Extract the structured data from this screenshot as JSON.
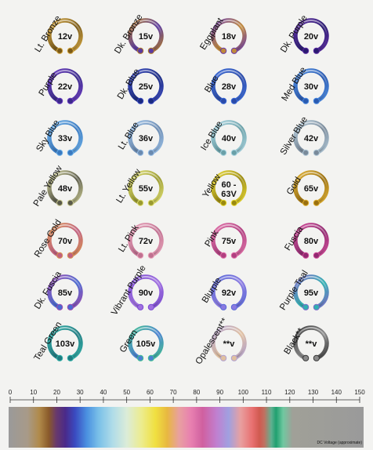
{
  "chart_data": {
    "type": "table",
    "title": "",
    "xlabel": "DC Voltage (approximate)",
    "x_ticks": [
      0,
      10,
      20,
      30,
      40,
      50,
      60,
      70,
      80,
      90,
      100,
      110,
      120,
      130,
      140,
      150
    ],
    "xlim": [
      0,
      150
    ],
    "rings": [
      {
        "name": "Lt. Bronze",
        "voltage": "12v",
        "color": "#d4a640",
        "color2": "#7a5a18"
      },
      {
        "name": "Dk. Bronze",
        "voltage": "15v",
        "color": "#b07a2a",
        "color2": "#5a3aa0"
      },
      {
        "name": "Eggplant",
        "voltage": "18v",
        "color": "#6a3aa8",
        "color2": "#c08a3a"
      },
      {
        "name": "Dk. Purple",
        "voltage": "20v",
        "color": "#5a2aa0",
        "color2": "#2a1a70"
      },
      {
        "name": "Purple",
        "voltage": "22v",
        "color": "#6a3ac0",
        "color2": "#3a2a8a"
      },
      {
        "name": "Dk. Blue",
        "voltage": "25v",
        "color": "#3a4ac0",
        "color2": "#1a2a80"
      },
      {
        "name": "Blue",
        "voltage": "28v",
        "color": "#3a6ad8",
        "color2": "#2a4aa8"
      },
      {
        "name": "Med Blue",
        "voltage": "30v",
        "color": "#4a8ae0",
        "color2": "#2a5ab0"
      },
      {
        "name": "Sky Blue",
        "voltage": "33v",
        "color": "#6aaee8",
        "color2": "#3a7ac0"
      },
      {
        "name": "Lt. Blue",
        "voltage": "36v",
        "color": "#9ac0e8",
        "color2": "#6a8ab0"
      },
      {
        "name": "Ice Blue",
        "voltage": "40v",
        "color": "#a8d4e0",
        "color2": "#6aa0a8"
      },
      {
        "name": "Silver Blue",
        "voltage": "42v",
        "color": "#b0c8d8",
        "color2": "#7a8a9a"
      },
      {
        "name": "Pale Yellow",
        "voltage": "48v",
        "color": "#c8c890",
        "color2": "#5a5a4a"
      },
      {
        "name": "Lt. Yellow",
        "voltage": "55v",
        "color": "#e0e070",
        "color2": "#9a9a30"
      },
      {
        "name": "Yellow",
        "voltage": "60 - 63V",
        "color": "#e8d830",
        "color2": "#9a8a10"
      },
      {
        "name": "Gold",
        "voltage": "65v",
        "color": "#e0b030",
        "color2": "#9a7010"
      },
      {
        "name": "Rose Gold",
        "voltage": "70v",
        "color": "#d89050",
        "color2": "#c06080"
      },
      {
        "name": "Lt. Pink",
        "voltage": "72v",
        "color": "#e8a0b8",
        "color2": "#c07090"
      },
      {
        "name": "Pink",
        "voltage": "75v",
        "color": "#e070a8",
        "color2": "#b04080"
      },
      {
        "name": "Fuscia",
        "voltage": "80v",
        "color": "#d04a98",
        "color2": "#902a70"
      },
      {
        "name": "Dk. Fuscia",
        "voltage": "85v",
        "color": "#9a4ab0",
        "color2": "#4a6ad0"
      },
      {
        "name": "Vibrant Purple",
        "voltage": "90v",
        "color": "#7a4ad0",
        "color2": "#a070e0"
      },
      {
        "name": "Blurple",
        "voltage": "92v",
        "color": "#5a6ad8",
        "color2": "#8a7ae0"
      },
      {
        "name": "Purple Teal",
        "voltage": "95v",
        "color": "#7a6ac8",
        "color2": "#30b0b0"
      },
      {
        "name": "Teal Green",
        "voltage": "103v",
        "color": "#30b0a8",
        "color2": "#207a80"
      },
      {
        "name": "Green",
        "voltage": "105v",
        "color": "#40c090",
        "color2": "#4a80d0"
      },
      {
        "name": "Opalescent**",
        "voltage": "**v",
        "color": "#b0a0d0",
        "color2": "#e0c0a0"
      },
      {
        "name": "Black**",
        "voltage": "**v",
        "color": "#3a3a3a",
        "color2": "#8a8a8a"
      }
    ],
    "spectrum": [
      {
        "v": 0,
        "color": "#9a9a9a"
      },
      {
        "v": 8,
        "color": "#a89a88"
      },
      {
        "v": 13,
        "color": "#b08a4a"
      },
      {
        "v": 17,
        "color": "#8a5a2a"
      },
      {
        "v": 20,
        "color": "#6a3a6a"
      },
      {
        "v": 24,
        "color": "#4a2a8a"
      },
      {
        "v": 28,
        "color": "#3a4ac0"
      },
      {
        "v": 33,
        "color": "#4a90e0"
      },
      {
        "v": 38,
        "color": "#7ac0e8"
      },
      {
        "v": 44,
        "color": "#b0dce8"
      },
      {
        "v": 50,
        "color": "#dcecd8"
      },
      {
        "v": 56,
        "color": "#ecec90"
      },
      {
        "v": 62,
        "color": "#f0e040"
      },
      {
        "v": 67,
        "color": "#e8b840"
      },
      {
        "v": 72,
        "color": "#e8a0a0"
      },
      {
        "v": 77,
        "color": "#e880b0"
      },
      {
        "v": 82,
        "color": "#d060a0"
      },
      {
        "v": 88,
        "color": "#c080d0"
      },
      {
        "v": 93,
        "color": "#a0a0e0"
      },
      {
        "v": 98,
        "color": "#e8a0a0"
      },
      {
        "v": 103,
        "color": "#e87070"
      },
      {
        "v": 106,
        "color": "#d05a50"
      },
      {
        "v": 108,
        "color": "#c07060"
      },
      {
        "v": 111,
        "color": "#60b090"
      },
      {
        "v": 113,
        "color": "#20a070"
      },
      {
        "v": 116,
        "color": "#70c8a0"
      },
      {
        "v": 120,
        "color": "#a0a098"
      },
      {
        "v": 150,
        "color": "#9a9a9a"
      }
    ]
  }
}
